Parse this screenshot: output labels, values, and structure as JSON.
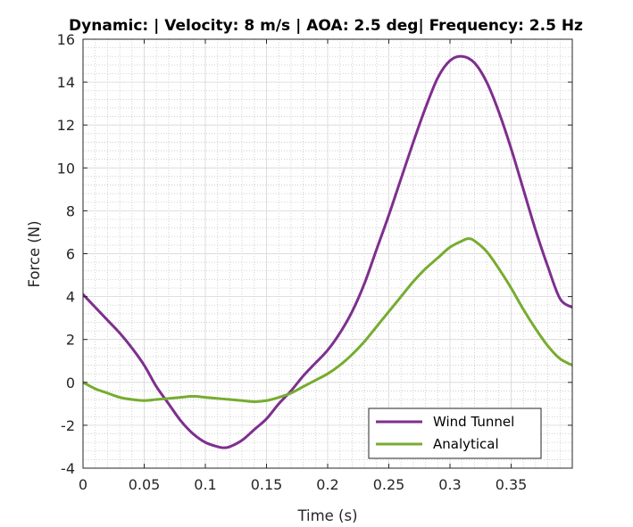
{
  "chart_data": {
    "type": "line",
    "title": "Dynamic:  | Velocity: 8 m/s | AOA: 2.5 deg| Frequency: 2.5 Hz",
    "xlabel": "Time (s)",
    "ylabel": "Force (N)",
    "xlim": [
      0,
      0.4
    ],
    "ylim": [
      -4,
      16
    ],
    "xticks": [
      0,
      0.05,
      0.1,
      0.15,
      0.2,
      0.25,
      0.3,
      0.35
    ],
    "xtick_labels": [
      "0",
      "0.05",
      "0.1",
      "0.15",
      "0.2",
      "0.25",
      "0.3",
      "0.35"
    ],
    "yticks": [
      -4,
      -2,
      0,
      2,
      4,
      6,
      8,
      10,
      12,
      14,
      16
    ],
    "ytick_labels": [
      "-4",
      "-2",
      "0",
      "2",
      "4",
      "6",
      "8",
      "10",
      "12",
      "14",
      "16"
    ],
    "grid": true,
    "minor_grid": true,
    "legend_position": "bottom-right",
    "series": [
      {
        "name": "Wind Tunnel",
        "color": "#7E2F8E",
        "x": [
          0,
          0.01,
          0.02,
          0.03,
          0.04,
          0.05,
          0.06,
          0.07,
          0.08,
          0.09,
          0.1,
          0.11,
          0.115,
          0.12,
          0.13,
          0.14,
          0.15,
          0.16,
          0.17,
          0.18,
          0.19,
          0.2,
          0.21,
          0.22,
          0.23,
          0.24,
          0.25,
          0.26,
          0.27,
          0.28,
          0.29,
          0.3,
          0.31,
          0.32,
          0.33,
          0.34,
          0.35,
          0.36,
          0.37,
          0.38,
          0.39,
          0.4
        ],
        "y": [
          4.1,
          3.5,
          2.9,
          2.3,
          1.6,
          0.8,
          -0.2,
          -1.0,
          -1.8,
          -2.4,
          -2.8,
          -3.0,
          -3.05,
          -3.0,
          -2.7,
          -2.2,
          -1.7,
          -1.0,
          -0.4,
          0.3,
          0.9,
          1.5,
          2.3,
          3.3,
          4.6,
          6.2,
          7.8,
          9.5,
          11.2,
          12.8,
          14.2,
          15.0,
          15.2,
          14.9,
          14.0,
          12.6,
          10.9,
          9.0,
          7.1,
          5.4,
          3.9,
          3.5
        ]
      },
      {
        "name": "Analytical",
        "color": "#77AC30",
        "x": [
          0,
          0.01,
          0.02,
          0.03,
          0.04,
          0.05,
          0.06,
          0.07,
          0.08,
          0.09,
          0.1,
          0.11,
          0.12,
          0.13,
          0.14,
          0.15,
          0.16,
          0.17,
          0.18,
          0.19,
          0.2,
          0.21,
          0.22,
          0.23,
          0.24,
          0.25,
          0.26,
          0.27,
          0.28,
          0.29,
          0.3,
          0.31,
          0.315,
          0.32,
          0.33,
          0.34,
          0.35,
          0.36,
          0.37,
          0.38,
          0.39,
          0.4
        ],
        "y": [
          0,
          -0.3,
          -0.5,
          -0.7,
          -0.8,
          -0.85,
          -0.8,
          -0.75,
          -0.7,
          -0.65,
          -0.7,
          -0.75,
          -0.8,
          -0.85,
          -0.9,
          -0.85,
          -0.7,
          -0.5,
          -0.2,
          0.1,
          0.4,
          0.8,
          1.3,
          1.9,
          2.6,
          3.3,
          4.0,
          4.7,
          5.3,
          5.8,
          6.3,
          6.6,
          6.7,
          6.6,
          6.1,
          5.3,
          4.4,
          3.4,
          2.5,
          1.7,
          1.1,
          0.8
        ]
      }
    ]
  }
}
